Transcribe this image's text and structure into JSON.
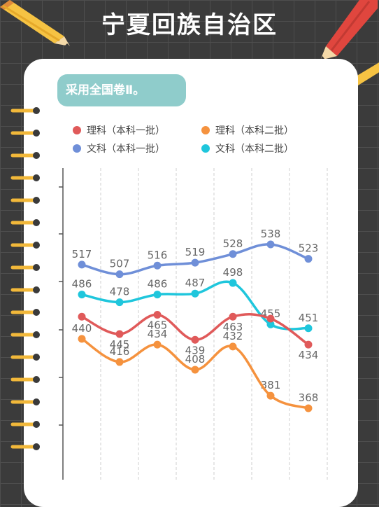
{
  "title": "宁夏回族自治区",
  "subtitle": "采用全国卷Ⅱ。",
  "chart_data": {
    "type": "line",
    "categories": [
      "",
      "",
      "",
      "",
      "",
      "",
      ""
    ],
    "series": [
      {
        "name": "文科（本科一批）",
        "color": "#6f8fd8",
        "values": [
          517,
          507,
          516,
          519,
          528,
          538,
          523
        ]
      },
      {
        "name": "文科（本科二批）",
        "color": "#1fc6dc",
        "values": [
          486,
          478,
          486,
          487,
          498,
          455,
          451
        ]
      },
      {
        "name": "理科（本科一批）",
        "color": "#e05a5a",
        "values": [
          null,
          445,
          465,
          439,
          463,
          null,
          434
        ]
      },
      {
        "name": "理科（本科二批）",
        "color": "#f5923e",
        "values": [
          440,
          416,
          434,
          408,
          432,
          381,
          368
        ]
      }
    ],
    "extra_points": [
      {
        "series": "理科（本科一批）",
        "index": 0,
        "value": 463,
        "labeled": false
      },
      {
        "series": "理科（本科一批）",
        "index": 5,
        "value": 461,
        "labeled": false
      }
    ],
    "grid": true,
    "legend_position": "top"
  }
}
